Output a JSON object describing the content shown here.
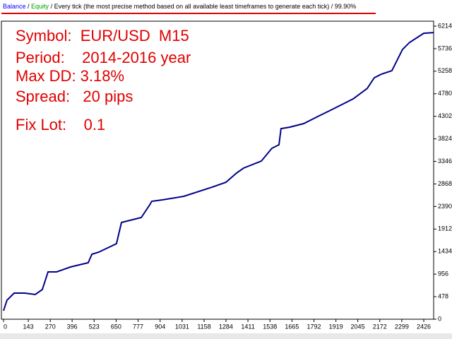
{
  "header_parts": [
    {
      "text": "Balance",
      "color": "#0000ff"
    },
    {
      "text": " / ",
      "color": "#000000"
    },
    {
      "text": "Equity",
      "color": "#00a000"
    },
    {
      "text": " / Every tick (the most precise method based on all available least timeframes to generate each tick) / 99.90%",
      "color": "#000000"
    }
  ],
  "chart_data": {
    "type": "line",
    "annotations": [
      "Symbol:  EUR/USD  M15",
      "Period:    2014-2016 year",
      "Max DD: 3.18%",
      "Spread:   20 pips",
      "Fix Lot:    0.1"
    ],
    "series": [
      {
        "color": "#00008b",
        "x": [
          0,
          20,
          61,
          122,
          183,
          224,
          257,
          306,
          387,
          489,
          510,
          550,
          652,
          681,
          795,
          844,
          856,
          917,
          1040,
          1203,
          1284,
          1345,
          1386,
          1488,
          1549,
          1590,
          1602,
          1651,
          1733,
          1814,
          1896,
          1977,
          2018,
          2100,
          2140,
          2181,
          2242,
          2303,
          2344,
          2426,
          2483
        ],
        "values": [
          180,
          404,
          554,
          554,
          524,
          629,
          1003,
          1003,
          1108,
          1198,
          1377,
          1422,
          1602,
          2051,
          2156,
          2425,
          2500,
          2530,
          2605,
          2799,
          2904,
          3099,
          3204,
          3353,
          3623,
          3698,
          4042,
          4072,
          4147,
          4297,
          4446,
          4596,
          4671,
          4895,
          5120,
          5195,
          5269,
          5718,
          5868,
          6063,
          6078
        ]
      }
    ],
    "xlim": [
      0,
      2483
    ],
    "ylim": [
      0,
      6214
    ],
    "xticks": [
      0,
      143,
      270,
      396,
      523,
      650,
      777,
      904,
      1031,
      1158,
      1284,
      1411,
      1538,
      1665,
      1792,
      1919,
      2045,
      2172,
      2299,
      2426
    ],
    "yticks": [
      0,
      478,
      956,
      1434,
      1912,
      2390,
      2868,
      3346,
      3824,
      4302,
      4780,
      5258,
      5736,
      6214
    ]
  }
}
